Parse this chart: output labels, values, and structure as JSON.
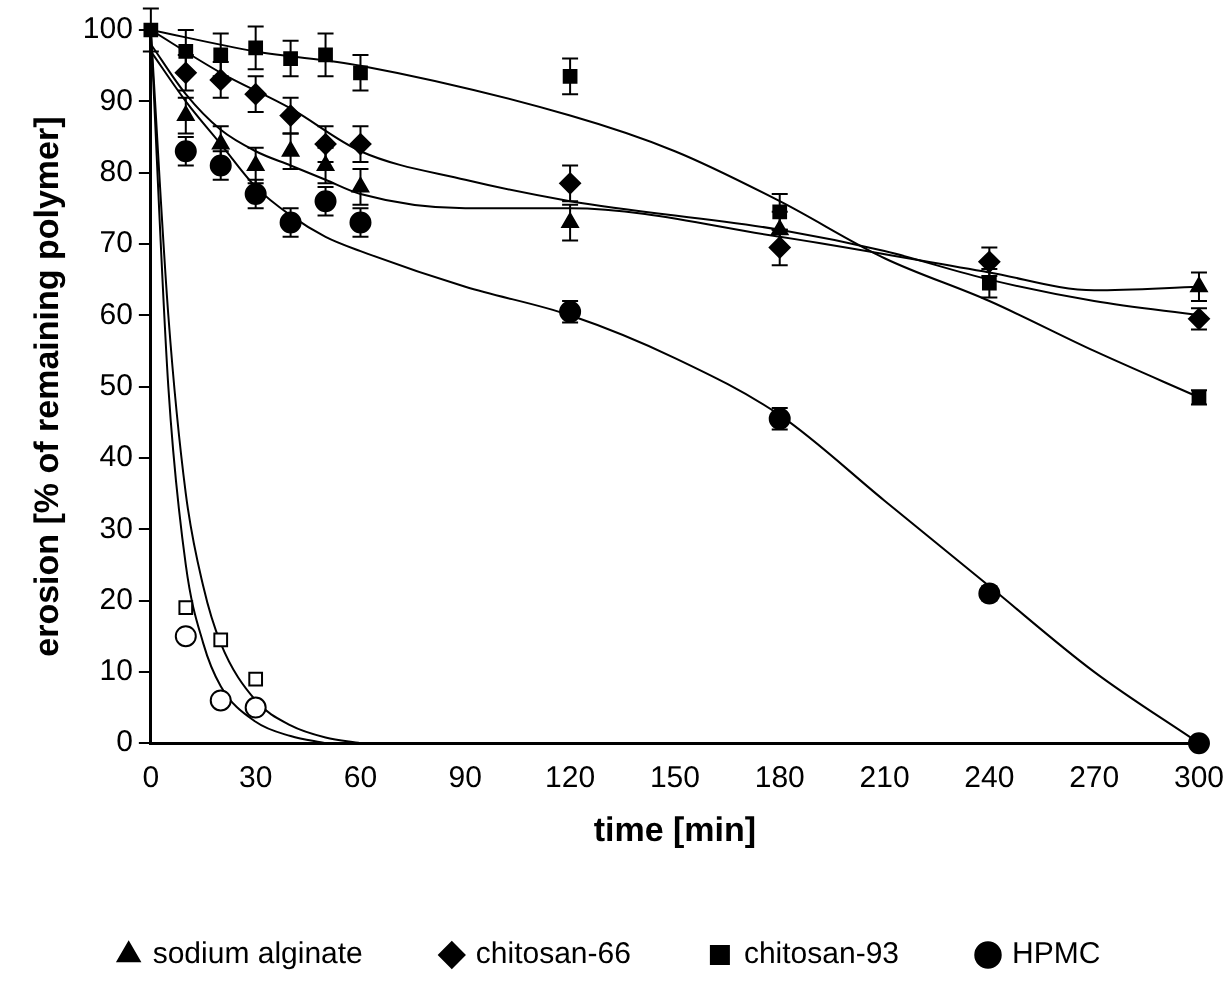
{
  "chart_data": {
    "type": "scatter",
    "xlabel": "time [min]",
    "ylabel": "erosion [% of remaining polymer]",
    "xlim": [
      0,
      300
    ],
    "xticks": [
      0,
      30,
      60,
      90,
      120,
      150,
      180,
      210,
      240,
      270,
      300
    ],
    "ylim": [
      0,
      100
    ],
    "yticks": [
      0,
      10,
      20,
      30,
      40,
      50,
      60,
      70,
      80,
      90,
      100
    ],
    "grid": false,
    "legend": "bottom",
    "series": [
      {
        "name": "sodium alginate",
        "color": "#000000",
        "marker": "triangle",
        "x": [
          10,
          20,
          30,
          40,
          50,
          60,
          120,
          180,
          240,
          300
        ],
        "values": [
          88,
          84,
          81,
          83,
          81,
          78,
          73,
          72,
          null,
          64
        ],
        "errors": [
          2.5,
          2.5,
          2.5,
          2.5,
          2.5,
          2.5,
          2.5,
          2.5,
          null,
          2
        ]
      },
      {
        "name": "chitosan-66",
        "color": "#000000",
        "marker": "diamond",
        "x": [
          10,
          20,
          30,
          40,
          50,
          60,
          120,
          180,
          240,
          300
        ],
        "values": [
          94,
          93,
          91,
          88,
          84,
          84,
          78.5,
          69.5,
          67.5,
          59.5
        ],
        "errors": [
          2.5,
          2.5,
          2.5,
          2.5,
          2.5,
          2.5,
          2.5,
          2.5,
          2,
          1.5
        ]
      },
      {
        "name": "chitosan-93",
        "color": "#000000",
        "marker": "square",
        "x": [
          0,
          10,
          20,
          30,
          40,
          50,
          60,
          120,
          180,
          240,
          300
        ],
        "values": [
          100,
          97,
          96.5,
          97.5,
          96,
          96.5,
          94,
          93.5,
          74.5,
          64.5,
          48.5
        ],
        "errors": [
          3,
          3,
          3,
          3,
          2.5,
          3,
          2.5,
          2.5,
          2.5,
          2,
          1
        ]
      },
      {
        "name": "HPMC",
        "color": "#000000",
        "marker": "circle",
        "x": [
          10,
          20,
          30,
          40,
          50,
          60,
          120,
          180,
          240,
          300
        ],
        "values": [
          83,
          81,
          77,
          73,
          76,
          73,
          60.5,
          45.5,
          21,
          0
        ],
        "errors": [
          2,
          2,
          2,
          2,
          2,
          2,
          1.5,
          1.5,
          1,
          null
        ]
      },
      {
        "color": "#ffffff",
        "marker": "square",
        "x": [
          10,
          20,
          30
        ],
        "values": [
          19,
          14.5,
          9
        ]
      },
      {
        "color": "#ffffff",
        "marker": "circle",
        "x": [
          10,
          20,
          30
        ],
        "values": [
          15,
          6,
          5
        ]
      },
      {
        "type": "line",
        "color": "#000000",
        "marker": "none",
        "x": [
          0,
          10,
          20,
          30,
          40,
          50,
          60,
          90,
          120,
          180,
          240,
          270,
          300
        ],
        "values": [
          98,
          91,
          86,
          83,
          81,
          79,
          77,
          75,
          75,
          71,
          66,
          63.5,
          64
        ]
      },
      {
        "type": "line",
        "color": "#000000",
        "marker": "none",
        "x": [
          0,
          20,
          40,
          60,
          90,
          120,
          180,
          210,
          240,
          270,
          300
        ],
        "values": [
          100,
          94,
          89,
          83,
          79,
          76,
          72,
          69,
          65,
          62,
          60
        ]
      },
      {
        "type": "line",
        "color": "#000000",
        "marker": "none",
        "x": [
          0,
          30,
          60,
          120,
          150,
          180,
          210,
          240,
          270,
          300
        ],
        "values": [
          100,
          97,
          95,
          88,
          83,
          76,
          68,
          62,
          55,
          48.5
        ]
      },
      {
        "type": "line",
        "color": "#000000",
        "marker": "none",
        "x": [
          0,
          10,
          20,
          30,
          40,
          50,
          60,
          90,
          120,
          150,
          180,
          210,
          240,
          270,
          300
        ],
        "values": [
          97,
          90,
          84,
          78,
          74,
          71,
          69,
          64,
          60,
          54,
          46,
          34,
          22,
          10,
          0
        ]
      },
      {
        "type": "line",
        "color": "#000000",
        "marker": "none",
        "x": [
          0,
          5,
          10,
          15,
          20,
          30,
          40,
          50,
          60
        ],
        "values": [
          100,
          60,
          35,
          22,
          14,
          6,
          2.5,
          0.8,
          0
        ]
      },
      {
        "type": "line",
        "color": "#000000",
        "marker": "none",
        "x": [
          0,
          5,
          10,
          15,
          20,
          30,
          40,
          50
        ],
        "values": [
          100,
          50,
          25,
          14,
          8,
          3,
          1,
          0
        ]
      }
    ]
  }
}
